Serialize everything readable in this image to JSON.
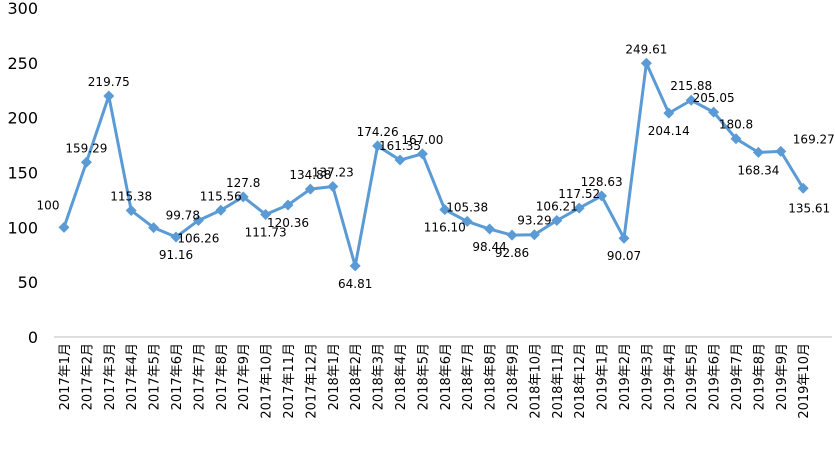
{
  "chart_data": {
    "type": "line",
    "title": "",
    "xlabel": "",
    "ylabel": "",
    "ylim": [
      0,
      300
    ],
    "yticks": [
      0,
      50,
      100,
      150,
      200,
      250,
      300
    ],
    "grid": false,
    "legend": "none",
    "line_color": "#5B9BD5",
    "categories": [
      "2017年1月",
      "2017年2月",
      "2017年3月",
      "2017年4月",
      "2017年5月",
      "2017年6月",
      "2017年7月",
      "2017年8月",
      "2017年9月",
      "2017年10月",
      "2017年11月",
      "2017年12月",
      "2018年1月",
      "2018年2月",
      "2018年3月",
      "2018年4月",
      "2018年5月",
      "2018年6月",
      "2018年7月",
      "2018年8月",
      "2018年9月",
      "2018年10月",
      "2018年11月",
      "2018年12月",
      "2019年1月",
      "2019年2月",
      "2019年3月",
      "2019年4月",
      "2019年5月",
      "2019年6月",
      "2019年7月",
      "2019年8月",
      "2019年9月",
      "2019年10月"
    ],
    "values": [
      100,
      159.29,
      219.75,
      115.38,
      99.78,
      91.16,
      106.26,
      115.56,
      127.8,
      111.73,
      120.36,
      134.88,
      137.23,
      64.81,
      174.26,
      161.35,
      167.0,
      116.1,
      105.38,
      98.44,
      92.86,
      93.29,
      106.21,
      117.52,
      128.63,
      90.07,
      249.61,
      204.14,
      215.88,
      205.05,
      180.8,
      168.34,
      169.27,
      135.61
    ],
    "value_labels": [
      "100",
      "159.29",
      "219.75",
      "115.38",
      "99.78",
      "91.16",
      "106.26",
      "115.56",
      "127.8",
      "111.73",
      "120.36",
      "134.88",
      "137.23",
      "64.81",
      "174.26",
      "161.35",
      "167.00",
      "116.10",
      "105.38",
      "98.44",
      "92.86",
      "93.29",
      "106.21",
      "117.52",
      "128.63",
      "90.07",
      "249.61",
      "204.14",
      "215.88",
      "205.05",
      "180.8",
      "168.34",
      "169.27",
      "135.61"
    ]
  }
}
